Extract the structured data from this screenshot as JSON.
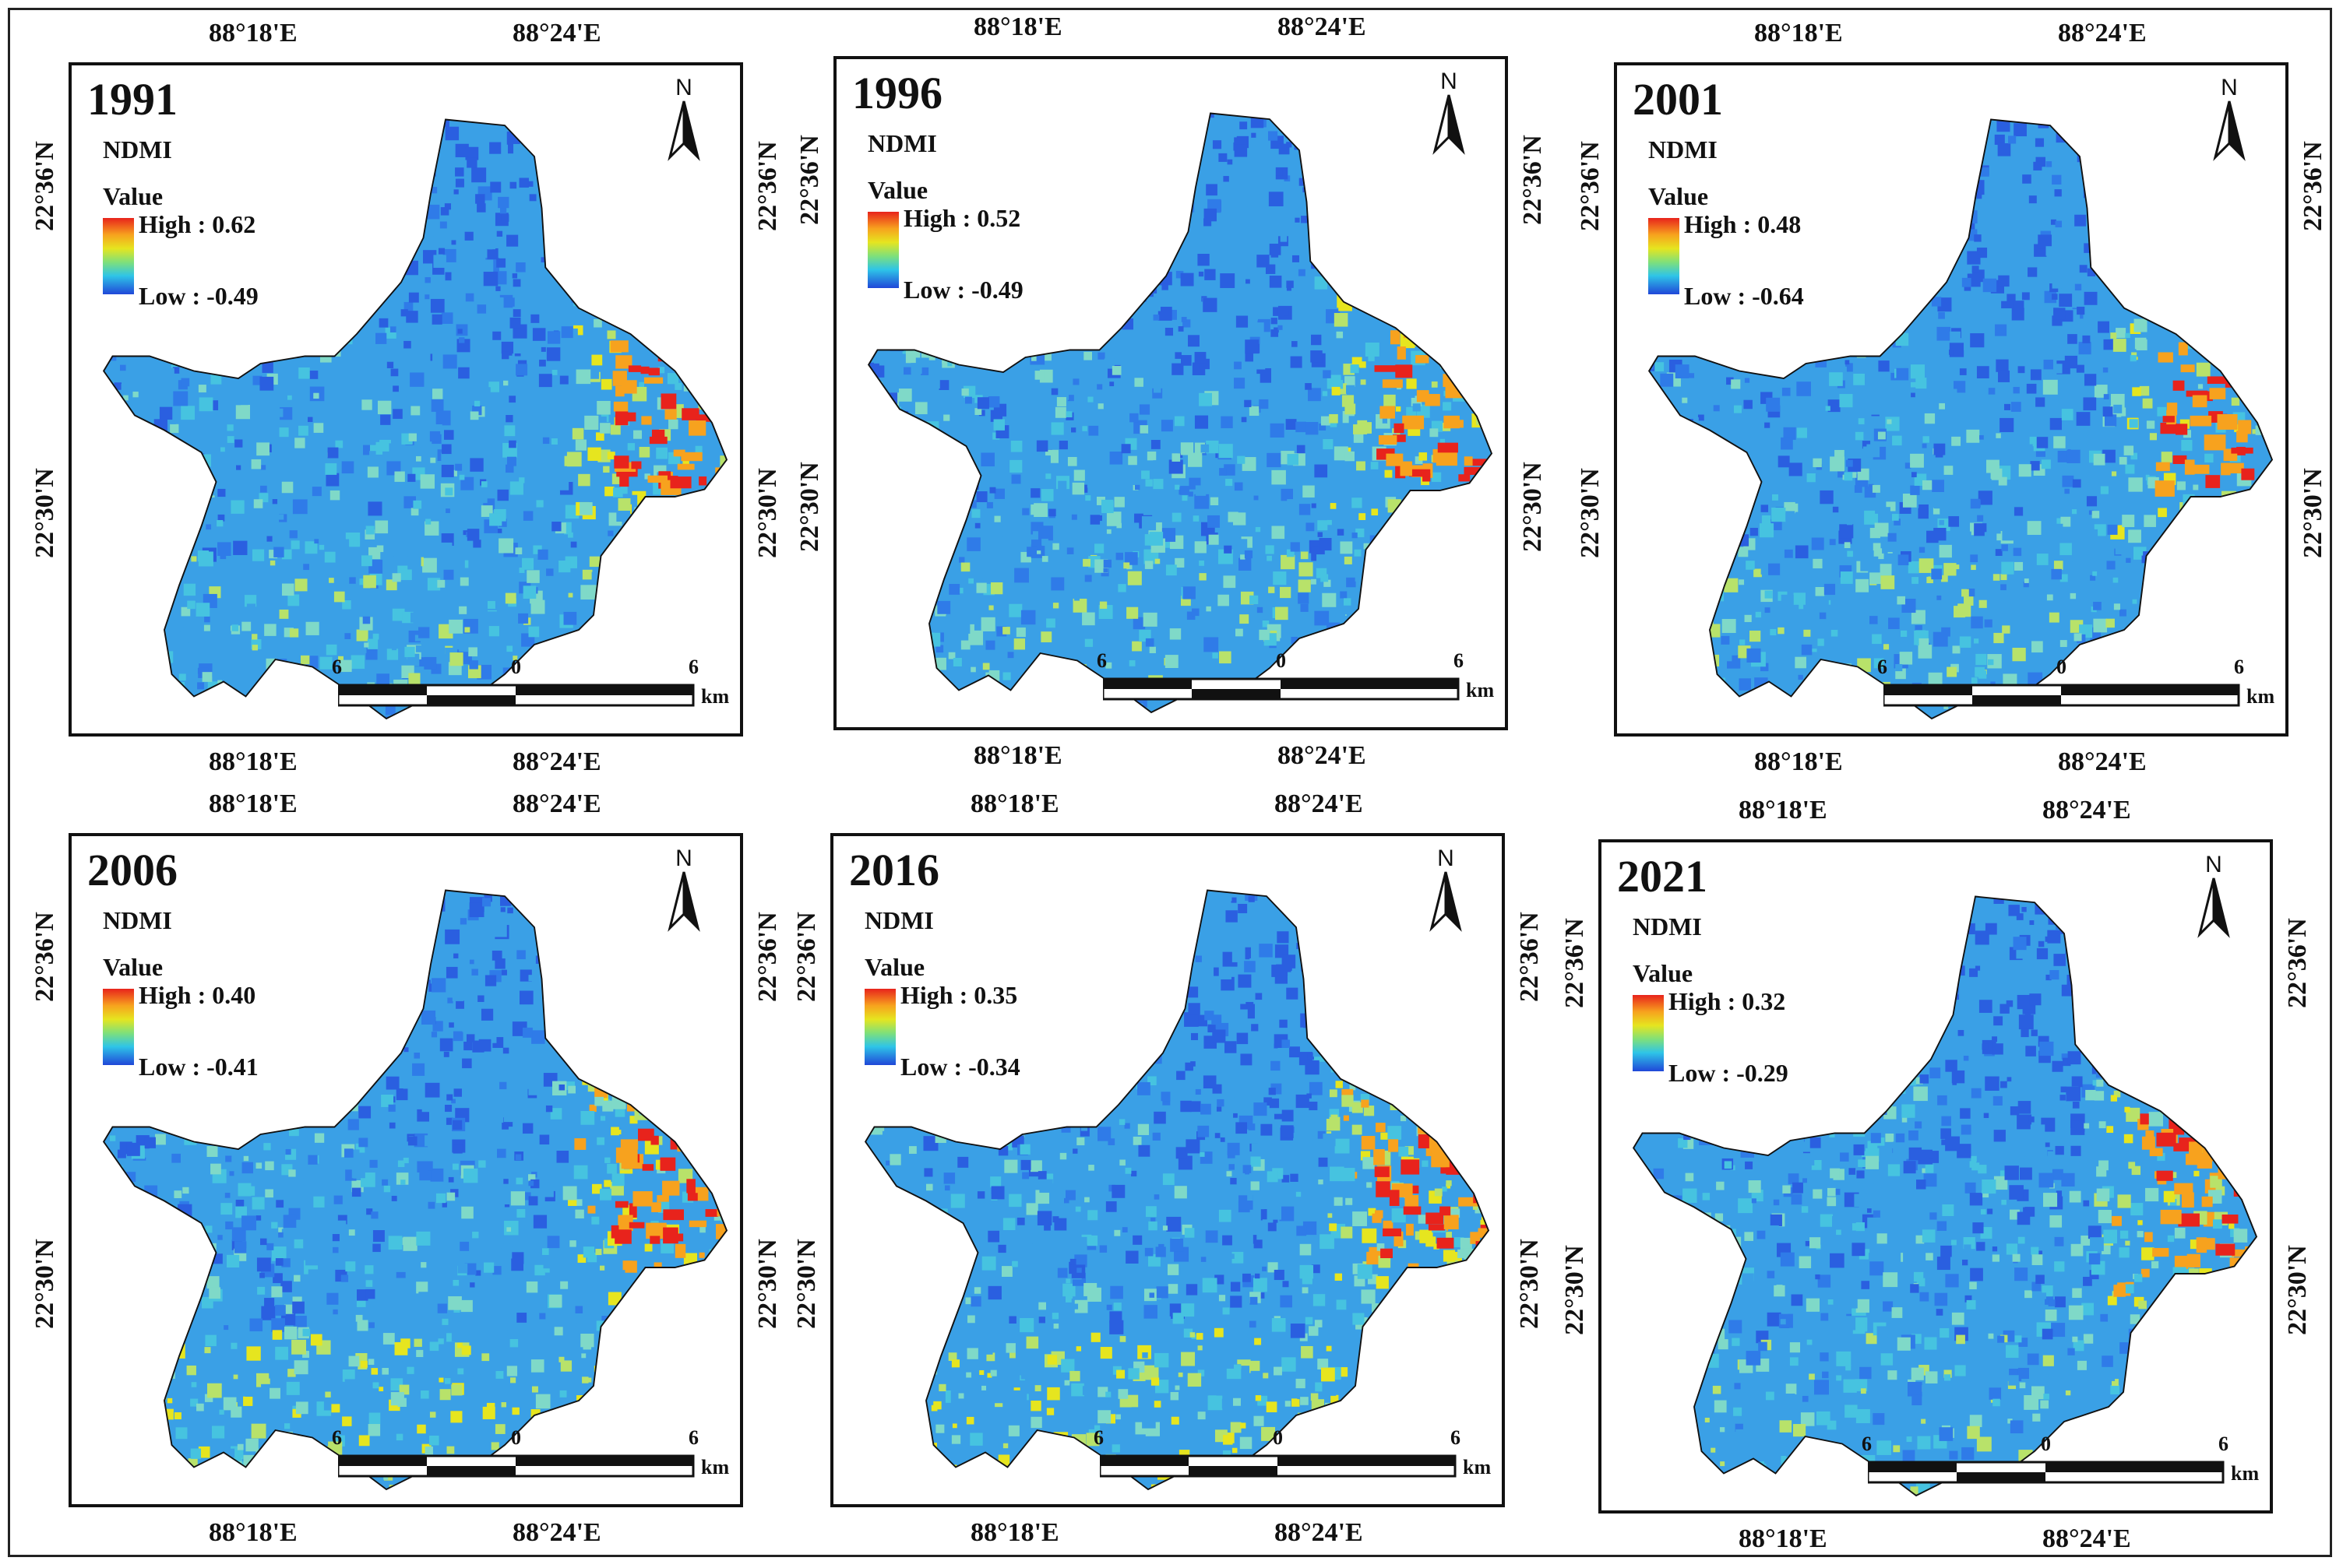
{
  "figure": {
    "panels": [
      {
        "year": "1991",
        "index_label": "NDMI",
        "value_label": "Value",
        "high": "High : 0.62",
        "low": "Low : -0.49"
      },
      {
        "year": "1996",
        "index_label": "NDMI",
        "value_label": "Value",
        "high": "High : 0.52",
        "low": "Low : -0.49"
      },
      {
        "year": "2001",
        "index_label": "NDMI",
        "value_label": "Value",
        "high": "High : 0.48",
        "low": "Low : -0.64"
      },
      {
        "year": "2006",
        "index_label": "NDMI",
        "value_label": "Value",
        "high": "High : 0.40",
        "low": "Low : -0.41"
      },
      {
        "year": "2016",
        "index_label": "NDMI",
        "value_label": "Value",
        "high": "High : 0.35",
        "low": "Low : -0.34"
      },
      {
        "year": "2021",
        "index_label": "NDMI",
        "value_label": "Value",
        "high": "High : 0.32",
        "low": "Low : -0.29"
      }
    ],
    "lon_labels": [
      "88°18'E",
      "88°24'E"
    ],
    "lat_labels": [
      "22°36'N",
      "22°30'N"
    ],
    "north_label": "N",
    "scale": {
      "left": "6",
      "mid": "0",
      "right": "6",
      "unit": "km"
    },
    "colors": {
      "high": "#e8231c",
      "mid": "#e6e51f",
      "low": "#2047d8",
      "base": "#3aa0e6"
    }
  }
}
